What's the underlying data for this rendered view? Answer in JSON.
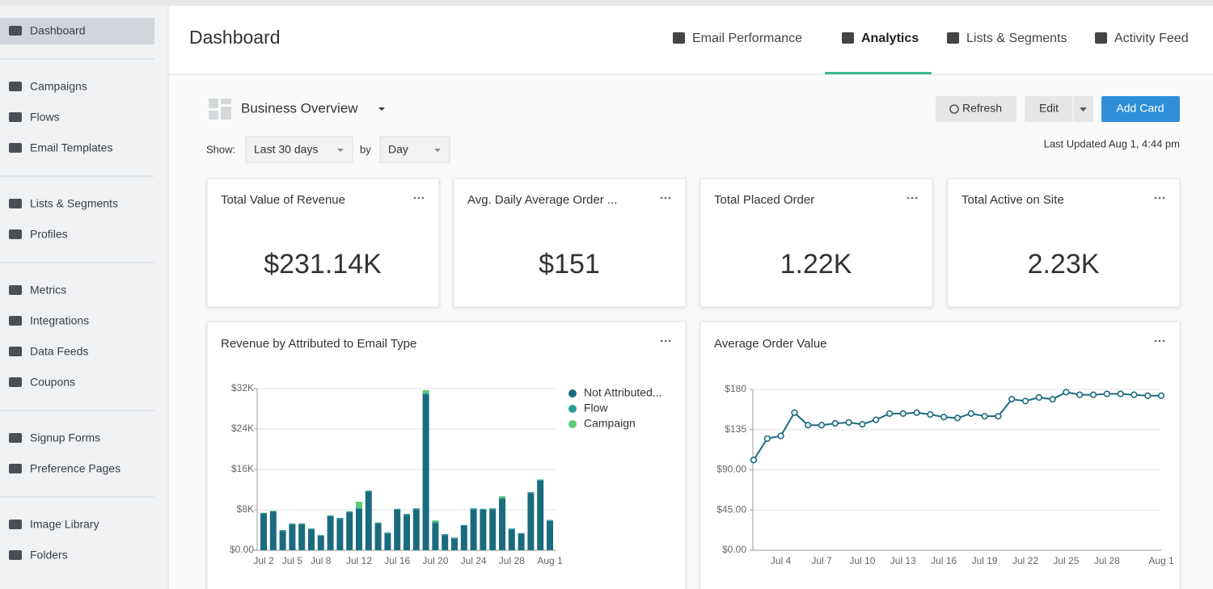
{
  "sidebar": {
    "groups": [
      [
        "Dashboard"
      ],
      [
        "Campaigns",
        "Flows",
        "Email Templates"
      ],
      [
        "Lists & Segments",
        "Profiles"
      ],
      [
        "Metrics",
        "Integrations",
        "Data Feeds",
        "Coupons"
      ],
      [
        "Signup Forms",
        "Preference Pages"
      ],
      [
        "Image Library",
        "Folders"
      ]
    ]
  },
  "header": {
    "title": "Dashboard",
    "tabs": [
      "Email Performance",
      "Analytics",
      "Lists & Segments",
      "Activity Feed"
    ]
  },
  "toolbar": {
    "dashboard_name": "Business Overview",
    "buttons": [
      "Refresh",
      "Edit",
      "Add Card"
    ],
    "show_label": "Show:",
    "range": "Last 30 days",
    "by_label": "by",
    "interval": "Day",
    "last_updated": "Last Updated Aug 1, 4:44 pm"
  },
  "cards": [
    {
      "title": "Total Value of Revenue",
      "value": "$231.14K"
    },
    {
      "title": "Avg. Daily Average Order ...",
      "value": "$151"
    },
    {
      "title": "Total Placed Order",
      "value": "1.22K"
    },
    {
      "title": "Total Active on Site",
      "value": "2.23K"
    }
  ],
  "chart_data": [
    {
      "type": "bar",
      "stacked": true,
      "title": "Revenue by Attributed to Email Type",
      "categories": [
        "Jul 2",
        null,
        null,
        "Jul 5",
        null,
        null,
        "Jul 8",
        null,
        null,
        null,
        "Jul 12",
        null,
        null,
        null,
        "Jul 16",
        null,
        null,
        null,
        "Jul 20",
        null,
        null,
        null,
        "Jul 24",
        null,
        null,
        null,
        "Jul 28",
        null,
        null,
        null,
        "Aug 1"
      ],
      "series": [
        {
          "name": "Not Attributed...",
          "color": "#1b6b80",
          "values": [
            7200,
            7600,
            3800,
            5100,
            5100,
            4100,
            2800,
            6700,
            6200,
            7500,
            8200,
            11600,
            5300,
            3300,
            8000,
            7000,
            8100,
            30800,
            5400,
            3000,
            2300,
            4800,
            8100,
            8000,
            8100,
            10200,
            4100,
            3200,
            11300,
            13800,
            5800
          ]
        },
        {
          "name": "Flow",
          "color": "#2a9d96",
          "values": [
            200,
            200,
            200,
            200,
            200,
            200,
            200,
            200,
            200,
            200,
            200,
            200,
            200,
            200,
            200,
            200,
            200,
            300,
            200,
            200,
            200,
            200,
            200,
            200,
            200,
            200,
            200,
            200,
            200,
            200,
            200
          ]
        },
        {
          "name": "Campaign",
          "color": "#5ccc74",
          "values": [
            0,
            0,
            0,
            0,
            0,
            0,
            0,
            0,
            0,
            0,
            1200,
            0,
            0,
            0,
            0,
            0,
            0,
            600,
            300,
            0,
            0,
            0,
            0,
            0,
            0,
            300,
            0,
            0,
            0,
            0,
            0
          ]
        }
      ],
      "ylim": [
        0,
        32000
      ],
      "yticks": [
        {
          "value": 0,
          "label": "$0.00"
        },
        {
          "value": 8000,
          "label": "$8K"
        },
        {
          "value": 16000,
          "label": "$16K"
        },
        {
          "value": 24000,
          "label": "$24K"
        },
        {
          "value": 32000,
          "label": "$32K"
        }
      ],
      "grid": true,
      "legend": "right"
    },
    {
      "type": "line",
      "title": "Average Order Value",
      "categories": [
        null,
        null,
        "Jul 4",
        null,
        null,
        "Jul 7",
        null,
        null,
        "Jul 10",
        null,
        null,
        "Jul 13",
        null,
        null,
        "Jul 16",
        null,
        null,
        "Jul 19",
        null,
        null,
        "Jul 22",
        null,
        null,
        "Jul 25",
        null,
        null,
        "Jul 28",
        null,
        null,
        null,
        "Aug 1"
      ],
      "series": [
        {
          "name": "Average Order Value",
          "color": "#1b6b80",
          "values": [
            101,
            125,
            128,
            154,
            140,
            140,
            142,
            143,
            141,
            146,
            153,
            153,
            154,
            152,
            149,
            148,
            153,
            150,
            150,
            169,
            167,
            171,
            169,
            177,
            174,
            174,
            175,
            175,
            174,
            173,
            173
          ]
        }
      ],
      "ylim": [
        0,
        180
      ],
      "yticks": [
        {
          "value": 0,
          "label": "$0.00"
        },
        {
          "value": 45,
          "label": "$45.00"
        },
        {
          "value": 90,
          "label": "$90.00"
        },
        {
          "value": 135,
          "label": "$135"
        },
        {
          "value": 180,
          "label": "$180"
        }
      ],
      "grid": true
    }
  ]
}
